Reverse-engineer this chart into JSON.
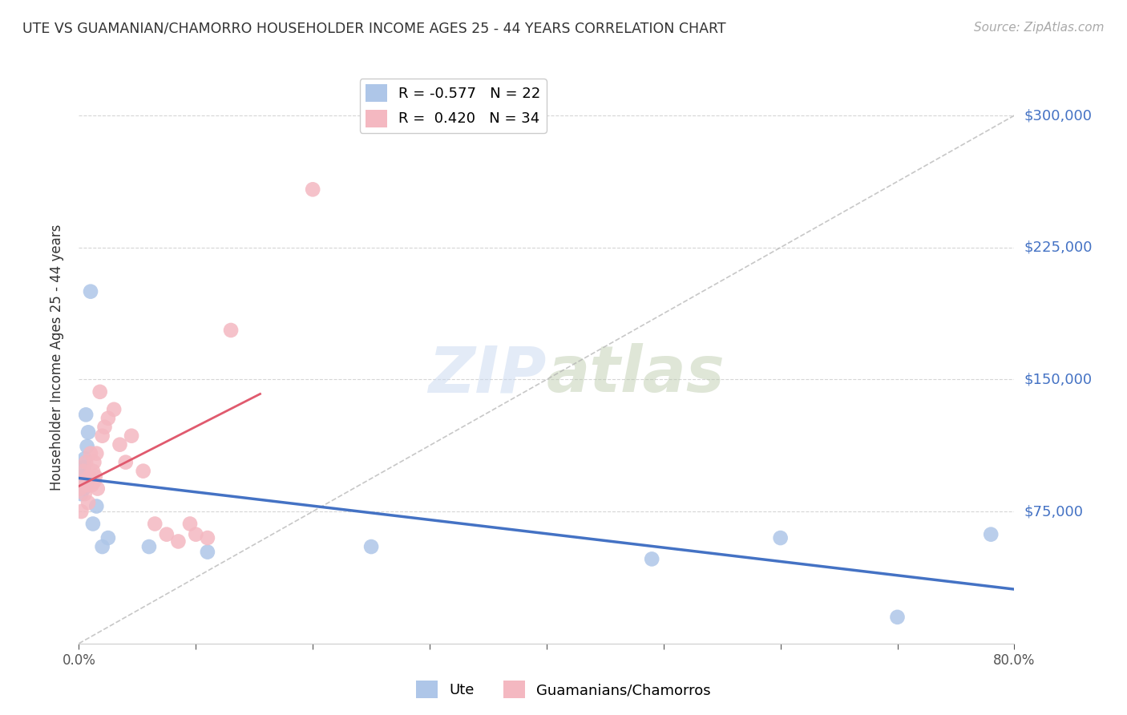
{
  "title": "UTE VS GUAMANIAN/CHAMORRO HOUSEHOLDER INCOME AGES 25 - 44 YEARS CORRELATION CHART",
  "source": "Source: ZipAtlas.com",
  "ylabel": "Householder Income Ages 25 - 44 years",
  "xlim": [
    0.0,
    0.8
  ],
  "ylim": [
    0,
    325000
  ],
  "yticks": [
    75000,
    150000,
    225000,
    300000
  ],
  "ytick_labels": [
    "$75,000",
    "$150,000",
    "$225,000",
    "$300,000"
  ],
  "xticks": [
    0.0,
    0.1,
    0.2,
    0.3,
    0.4,
    0.5,
    0.6,
    0.7,
    0.8
  ],
  "xtick_labels": [
    "0.0%",
    "",
    "",
    "",
    "",
    "",
    "",
    "",
    "80.0%"
  ],
  "ute_color": "#aec6e8",
  "gua_color": "#f4b8c1",
  "trendline_ute_color": "#4472c4",
  "trendline_gua_color": "#e05a6e",
  "legend_ute_R": "-0.577",
  "legend_ute_N": "22",
  "legend_gua_R": "0.420",
  "legend_gua_N": "34",
  "watermark_zip": "ZIP",
  "watermark_atlas": "atlas",
  "background_color": "#ffffff",
  "grid_color": "#cccccc",
  "ute_x": [
    0.001,
    0.002,
    0.003,
    0.004,
    0.004,
    0.005,
    0.006,
    0.006,
    0.007,
    0.008,
    0.01,
    0.012,
    0.015,
    0.02,
    0.025,
    0.06,
    0.11,
    0.25,
    0.49,
    0.6,
    0.7,
    0.78
  ],
  "ute_y": [
    88000,
    85000,
    95000,
    100000,
    88000,
    105000,
    90000,
    130000,
    112000,
    120000,
    200000,
    68000,
    78000,
    55000,
    60000,
    55000,
    52000,
    55000,
    48000,
    60000,
    15000,
    62000
  ],
  "gua_x": [
    0.001,
    0.002,
    0.003,
    0.004,
    0.005,
    0.006,
    0.007,
    0.008,
    0.009,
    0.01,
    0.011,
    0.012,
    0.013,
    0.013,
    0.014,
    0.015,
    0.016,
    0.018,
    0.02,
    0.022,
    0.025,
    0.03,
    0.035,
    0.04,
    0.045,
    0.055,
    0.065,
    0.075,
    0.085,
    0.095,
    0.1,
    0.11,
    0.13,
    0.2
  ],
  "gua_y": [
    88000,
    75000,
    92000,
    98000,
    85000,
    103000,
    90000,
    80000,
    95000,
    108000,
    90000,
    98000,
    92000,
    103000,
    95000,
    108000,
    88000,
    143000,
    118000,
    123000,
    128000,
    133000,
    113000,
    103000,
    118000,
    98000,
    68000,
    62000,
    58000,
    68000,
    62000,
    60000,
    178000,
    258000
  ]
}
